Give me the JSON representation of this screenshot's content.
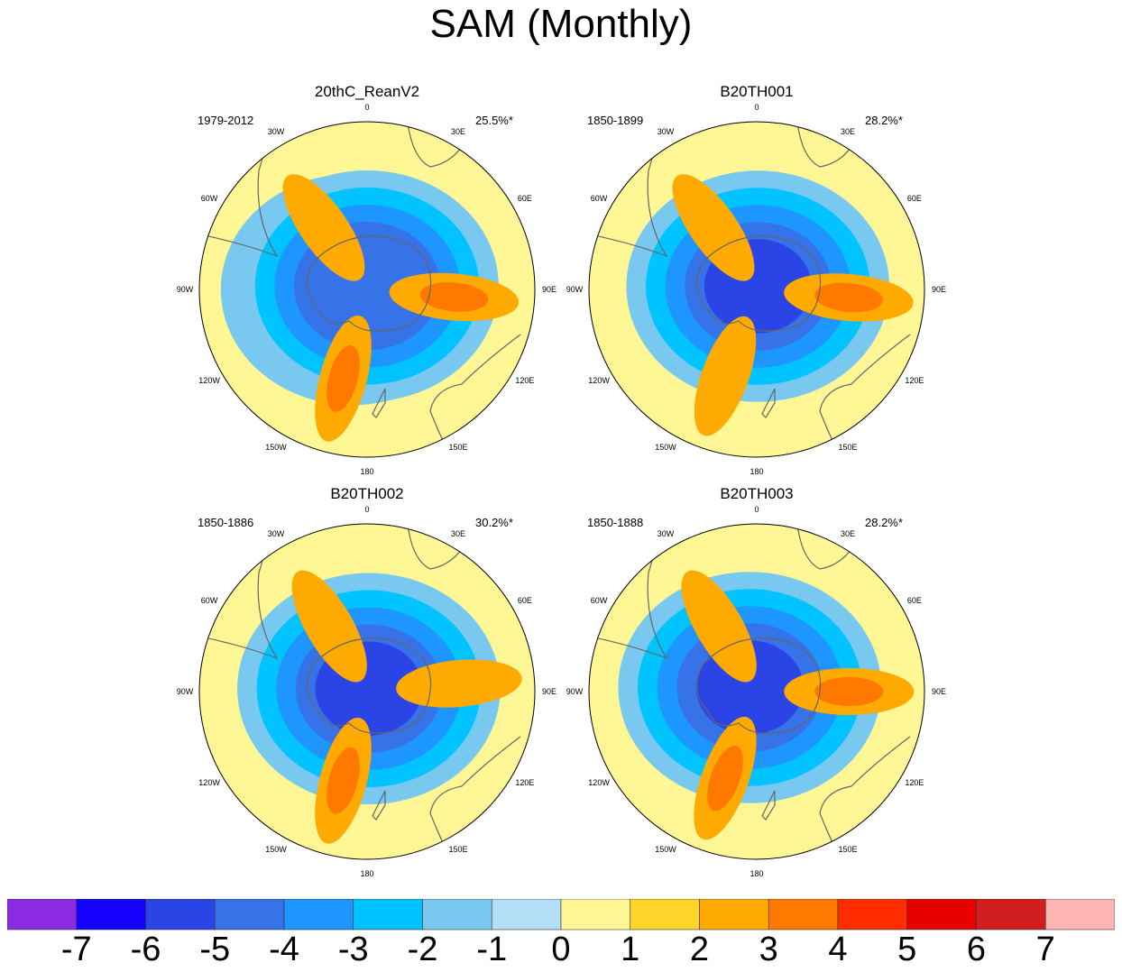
{
  "figure_title": "SAM (Monthly)",
  "chart_data": [
    {
      "type": "polar-contour-map",
      "title": "20thC_ReanV2",
      "period": "1979-2012",
      "variance_explained": "25.5%*",
      "longitude_labels": [
        "0",
        "30E",
        "60E",
        "90E",
        "120E",
        "150E",
        "180",
        "150W",
        "120W",
        "90W",
        "60W",
        "30W"
      ],
      "features": [
        {
          "kind": "low",
          "value": -5,
          "center_lon_deg": -90,
          "center_colat_frac": 0.22
        },
        {
          "kind": "low",
          "value": -4,
          "center_lon_deg": 0,
          "center_colat_frac": 0.05
        },
        {
          "kind": "high",
          "value": 2,
          "center_lon_deg": 95,
          "center_colat_frac": 0.52
        },
        {
          "kind": "high",
          "value": 2,
          "center_lon_deg": -165,
          "center_colat_frac": 0.55
        },
        {
          "kind": "high",
          "value": 1,
          "center_lon_deg": -35,
          "center_colat_frac": 0.45
        }
      ]
    },
    {
      "type": "polar-contour-map",
      "title": "B20TH001",
      "period": "1850-1899",
      "variance_explained": "28.2%*",
      "longitude_labels": [
        "0",
        "30E",
        "60E",
        "90E",
        "120E",
        "150E",
        "180",
        "150W",
        "120W",
        "90W",
        "60W",
        "30W"
      ],
      "features": [
        {
          "kind": "low",
          "value": -5,
          "center_lon_deg": 20,
          "center_colat_frac": 0.05
        },
        {
          "kind": "high",
          "value": 2,
          "center_lon_deg": 95,
          "center_colat_frac": 0.55
        },
        {
          "kind": "high",
          "value": 1,
          "center_lon_deg": -160,
          "center_colat_frac": 0.55
        },
        {
          "kind": "high",
          "value": 1,
          "center_lon_deg": -35,
          "center_colat_frac": 0.45
        }
      ]
    },
    {
      "type": "polar-contour-map",
      "title": "B20TH002",
      "period": "1850-1886",
      "variance_explained": "30.2%*",
      "longitude_labels": [
        "0",
        "30E",
        "60E",
        "90E",
        "120E",
        "150E",
        "180",
        "150W",
        "120W",
        "90W",
        "60W",
        "30W"
      ],
      "features": [
        {
          "kind": "low",
          "value": -5,
          "center_lon_deg": 30,
          "center_colat_frac": 0.05
        },
        {
          "kind": "high",
          "value": 1,
          "center_lon_deg": 85,
          "center_colat_frac": 0.55
        },
        {
          "kind": "high",
          "value": 2,
          "center_lon_deg": -165,
          "center_colat_frac": 0.55
        },
        {
          "kind": "high",
          "value": 1,
          "center_lon_deg": -30,
          "center_colat_frac": 0.45
        }
      ]
    },
    {
      "type": "polar-contour-map",
      "title": "B20TH003",
      "period": "1850-1888",
      "variance_explained": "28.2%*",
      "longitude_labels": [
        "0",
        "30E",
        "60E",
        "90E",
        "120E",
        "150E",
        "180",
        "150W",
        "120W",
        "90W",
        "60W",
        "30W"
      ],
      "features": [
        {
          "kind": "low",
          "value": -5,
          "center_lon_deg": -60,
          "center_colat_frac": 0.12
        },
        {
          "kind": "high",
          "value": 2,
          "center_lon_deg": 90,
          "center_colat_frac": 0.55
        },
        {
          "kind": "high",
          "value": 2,
          "center_lon_deg": -160,
          "center_colat_frac": 0.55
        },
        {
          "kind": "high",
          "value": 1,
          "center_lon_deg": -30,
          "center_colat_frac": 0.45
        }
      ]
    }
  ],
  "colorbar": {
    "labels": [
      "-7",
      "-6",
      "-5",
      "-4",
      "-3",
      "-2",
      "-1",
      "0",
      "1",
      "2",
      "3",
      "4",
      "5",
      "6",
      "7"
    ],
    "colors": [
      "#8a2be2",
      "#1400ff",
      "#2b44e6",
      "#3673e8",
      "#1e96ff",
      "#00c3ff",
      "#78c8f0",
      "#b4def5",
      "#fff796",
      "#ffd42b",
      "#ffaa00",
      "#ff7800",
      "#ff2d00",
      "#e60000",
      "#d21e1e",
      "#ffb4b4"
    ]
  },
  "style": {
    "land_outline": "#666666",
    "map_background": "#fff796"
  }
}
